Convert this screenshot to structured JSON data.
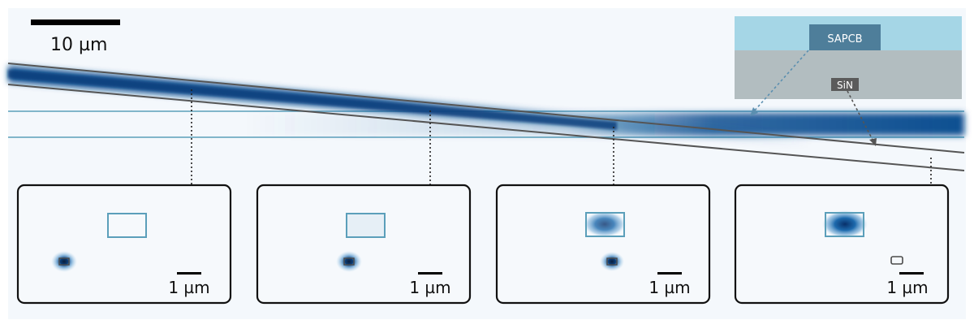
{
  "scale_bar": {
    "label": "10 µm"
  },
  "inset": {
    "top_layer_label": "SAPCB",
    "bottom_layer_label": "SiN",
    "colors": {
      "top_layer": "#a5d6e6",
      "bottom_layer": "#b2bdc0",
      "top_label_bg": "#4e7e9a",
      "bottom_label_bg": "#5b5b5b"
    }
  },
  "mode_panels": [
    {
      "scale_label": "1 µm",
      "sapcb_mode_strength": 0.0,
      "sin_mode_strength": 1.0
    },
    {
      "scale_label": "1 µm",
      "sapcb_mode_strength": 0.05,
      "sin_mode_strength": 0.9
    },
    {
      "scale_label": "1 µm",
      "sapcb_mode_strength": 0.6,
      "sin_mode_strength": 0.85
    },
    {
      "scale_label": "1 µm",
      "sapcb_mode_strength": 1.0,
      "sin_mode_strength": 0.0
    }
  ],
  "colors": {
    "background": "#f4f8fc",
    "field": "#0b4f91",
    "sapcb_outline": "#5b9fba",
    "sin_outline": "#555555"
  }
}
